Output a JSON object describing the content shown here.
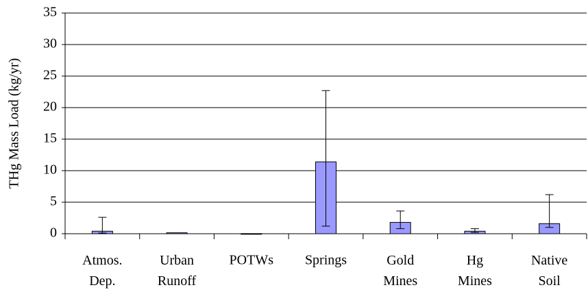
{
  "chart_data": {
    "type": "bar",
    "y_label": "THg Mass Load (kg/yr)",
    "categories": [
      "Atmos. Dep.",
      "Urban Runoff",
      "POTWs",
      "Springs",
      "Gold Mines",
      "Hg Mines",
      "Native Soil"
    ],
    "values": [
      0.4,
      0.15,
      0.02,
      11.4,
      1.8,
      0.4,
      1.6
    ],
    "error_minus": [
      0.3,
      null,
      null,
      10.2,
      1.0,
      0.2,
      0.6
    ],
    "error_plus": [
      2.2,
      null,
      null,
      11.3,
      1.8,
      0.4,
      4.6
    ],
    "color": "#9999ff",
    "ylim": [
      0,
      35
    ],
    "yticks": [
      0,
      5,
      10,
      15,
      20,
      25,
      30,
      35
    ],
    "grid": true
  }
}
